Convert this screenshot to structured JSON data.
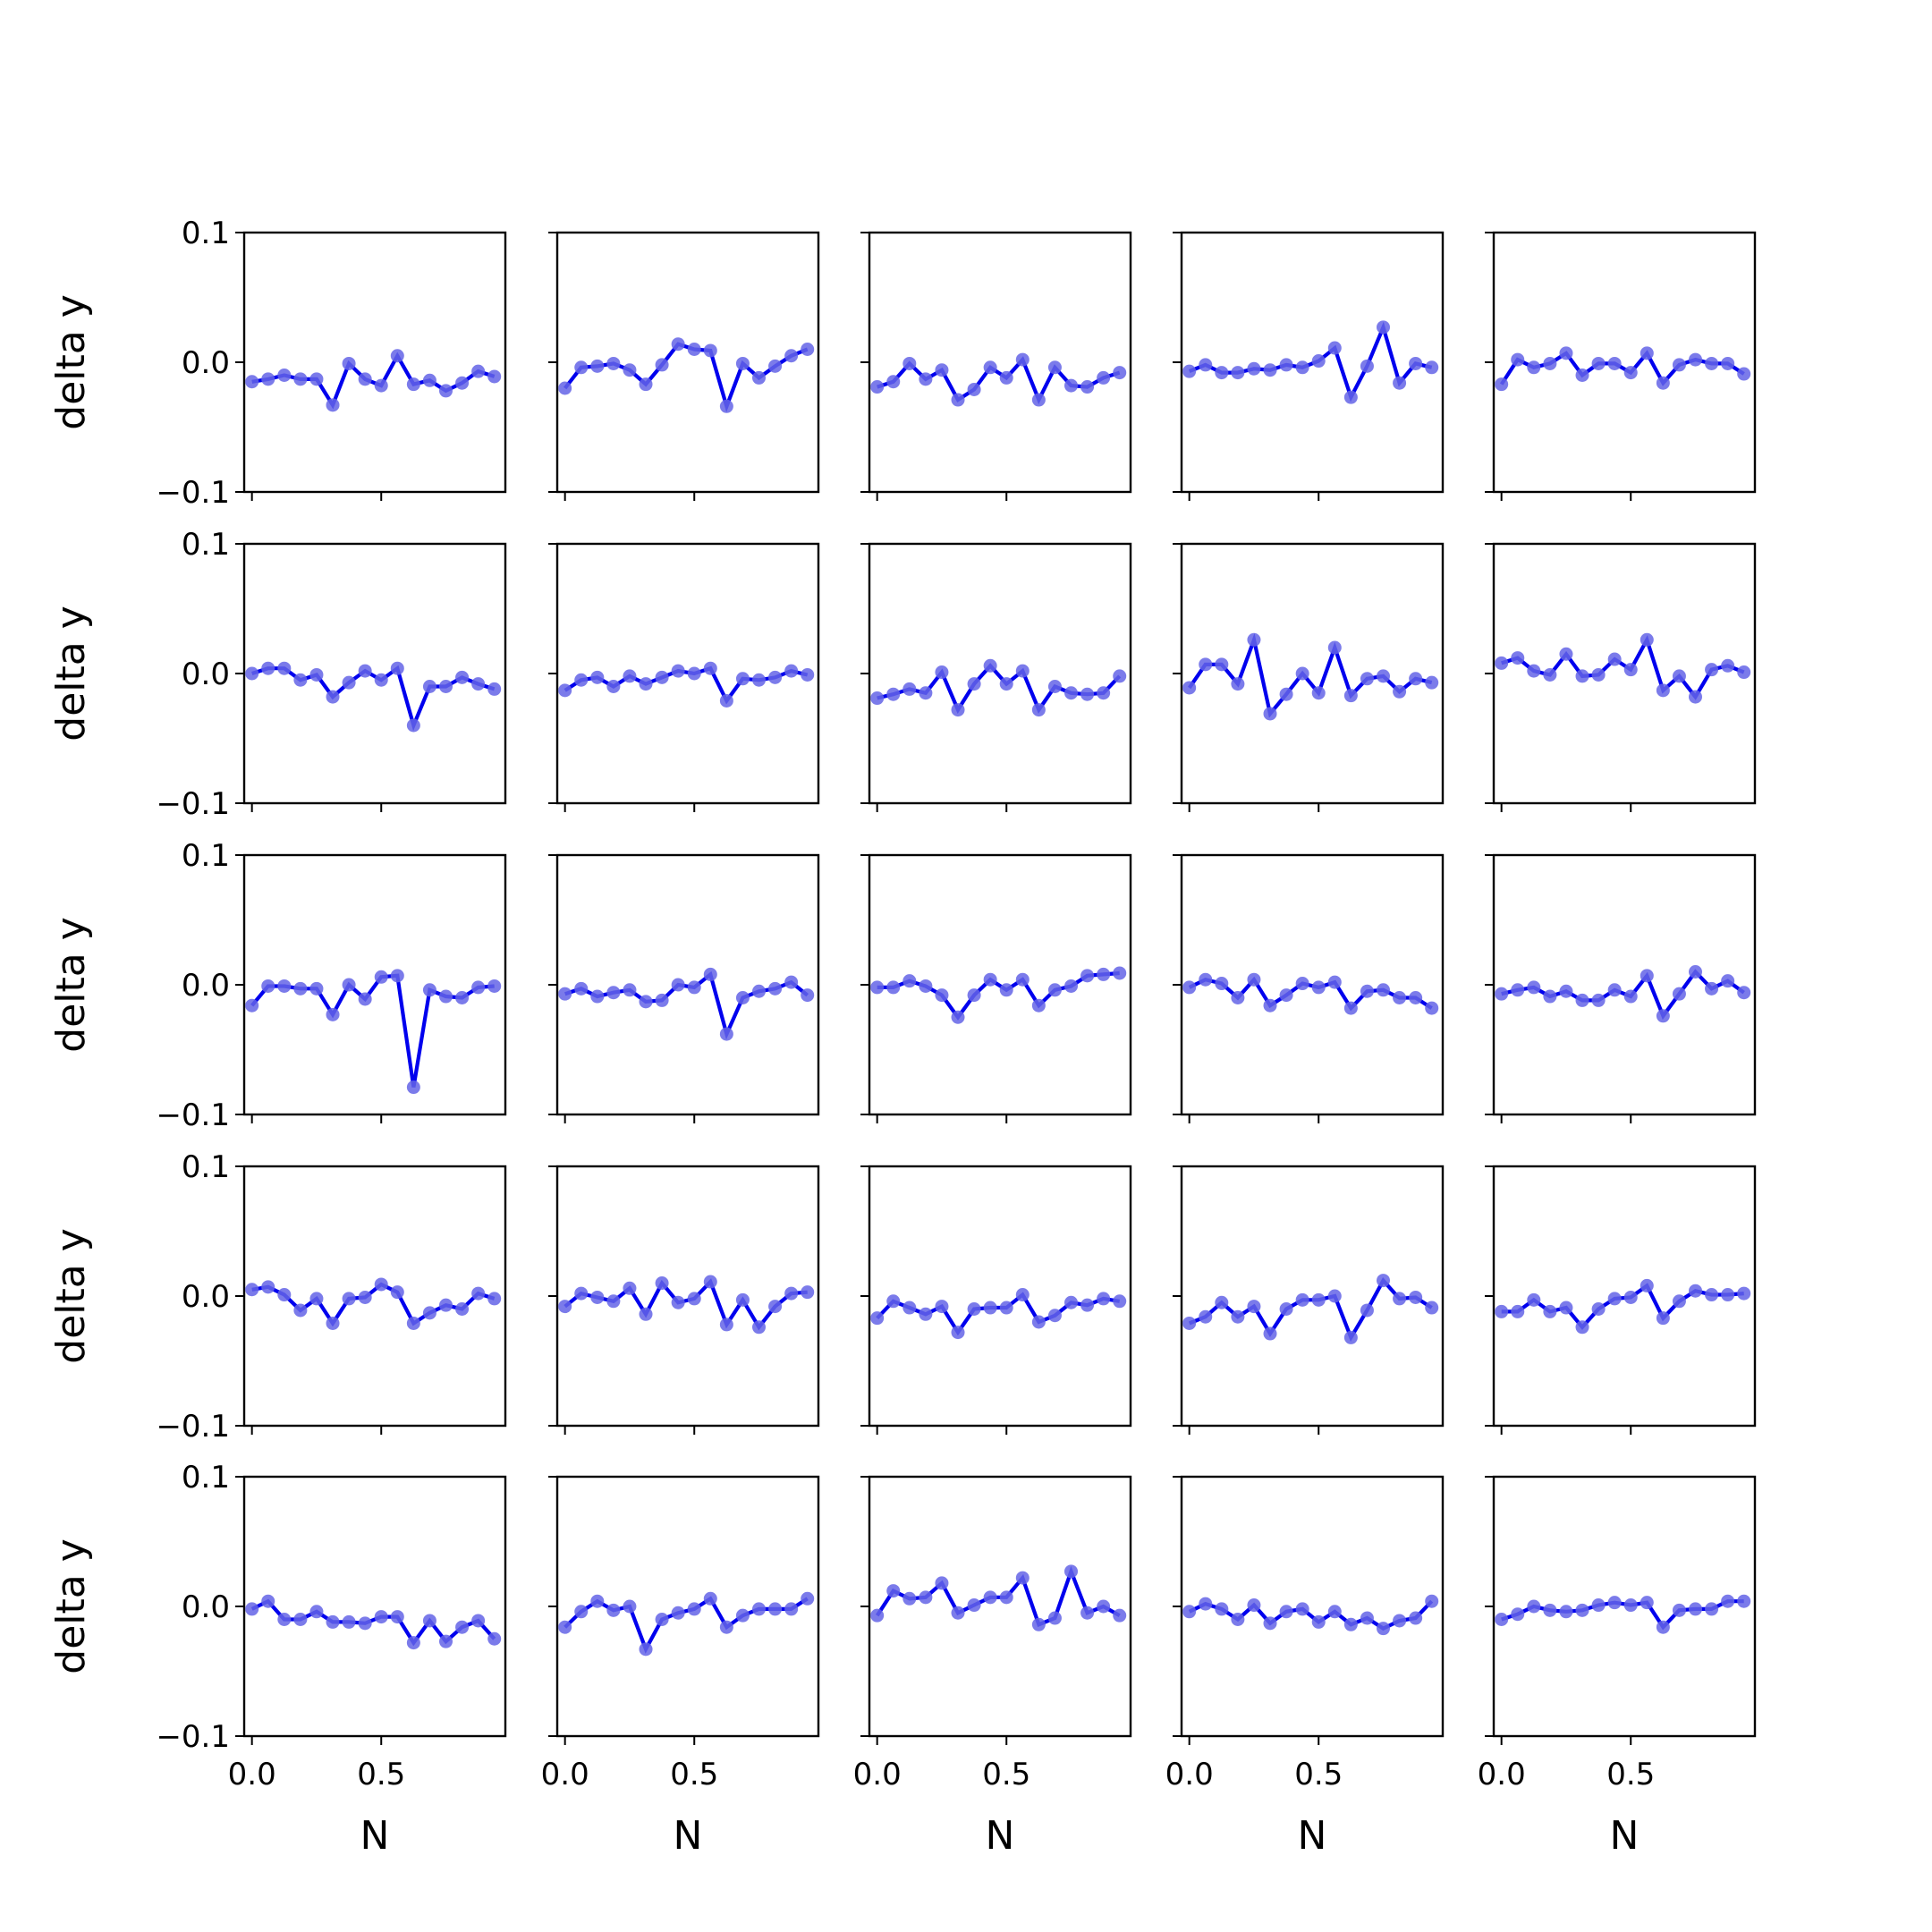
{
  "chart_data": {
    "type": "line",
    "layout": "5x5 grid of small multiples (shared x, shared y)",
    "xlabel": "N",
    "ylabel": "delta y",
    "xlim": [
      -0.03,
      0.98
    ],
    "ylim": [
      -0.1,
      0.1
    ],
    "x_ticks": [
      0.0,
      0.5
    ],
    "x_tick_labels": [
      "0.0",
      "0.5"
    ],
    "y_ticks": [
      0.1,
      0.0,
      -0.1
    ],
    "y_tick_labels": [
      "0.1",
      "0.0",
      "−0.1"
    ],
    "x": [
      0.0,
      0.0625,
      0.125,
      0.1875,
      0.25,
      0.3125,
      0.375,
      0.4375,
      0.5,
      0.5625,
      0.625,
      0.6875,
      0.75,
      0.8125,
      0.875,
      0.9375
    ],
    "series_color": "#0000ee",
    "marker_color": "#6464e6",
    "panels": [
      {
        "row": 1,
        "col": 1,
        "values": [
          -0.015,
          -0.013,
          -0.01,
          -0.013,
          -0.013,
          -0.033,
          -0.001,
          -0.013,
          -0.018,
          0.005,
          -0.017,
          -0.014,
          -0.022,
          -0.016,
          -0.007,
          -0.011
        ]
      },
      {
        "row": 1,
        "col": 2,
        "values": [
          -0.02,
          -0.004,
          -0.003,
          -0.001,
          -0.006,
          -0.017,
          -0.002,
          0.014,
          0.01,
          0.009,
          -0.034,
          -0.001,
          -0.012,
          -0.003,
          0.005,
          0.01
        ]
      },
      {
        "row": 1,
        "col": 3,
        "values": [
          -0.019,
          -0.015,
          -0.001,
          -0.013,
          -0.006,
          -0.029,
          -0.021,
          -0.004,
          -0.012,
          0.002,
          -0.029,
          -0.004,
          -0.018,
          -0.019,
          -0.012,
          -0.008
        ]
      },
      {
        "row": 1,
        "col": 4,
        "values": [
          -0.007,
          -0.002,
          -0.008,
          -0.008,
          -0.005,
          -0.006,
          -0.002,
          -0.004,
          0.001,
          0.011,
          -0.027,
          -0.003,
          0.027,
          -0.016,
          -0.001,
          -0.004
        ]
      },
      {
        "row": 1,
        "col": 5,
        "values": [
          -0.017,
          0.002,
          -0.004,
          -0.001,
          0.007,
          -0.01,
          -0.001,
          -0.001,
          -0.008,
          0.007,
          -0.016,
          -0.002,
          0.002,
          -0.001,
          -0.001,
          -0.009
        ]
      },
      {
        "row": 2,
        "col": 1,
        "values": [
          0.0,
          0.004,
          0.004,
          -0.005,
          -0.001,
          -0.018,
          -0.007,
          0.002,
          -0.005,
          0.004,
          -0.04,
          -0.01,
          -0.01,
          -0.003,
          -0.008,
          -0.012
        ]
      },
      {
        "row": 2,
        "col": 2,
        "values": [
          -0.013,
          -0.005,
          -0.003,
          -0.01,
          -0.002,
          -0.008,
          -0.003,
          0.002,
          0.0,
          0.004,
          -0.021,
          -0.004,
          -0.005,
          -0.003,
          0.002,
          -0.001
        ]
      },
      {
        "row": 2,
        "col": 3,
        "values": [
          -0.019,
          -0.016,
          -0.012,
          -0.015,
          0.001,
          -0.028,
          -0.008,
          0.006,
          -0.008,
          0.002,
          -0.028,
          -0.01,
          -0.015,
          -0.016,
          -0.015,
          -0.002
        ]
      },
      {
        "row": 2,
        "col": 4,
        "values": [
          -0.011,
          0.007,
          0.007,
          -0.008,
          0.026,
          -0.031,
          -0.016,
          0.0,
          -0.015,
          0.02,
          -0.017,
          -0.004,
          -0.002,
          -0.014,
          -0.004,
          -0.007
        ]
      },
      {
        "row": 2,
        "col": 5,
        "values": [
          0.008,
          0.012,
          0.002,
          -0.001,
          0.015,
          -0.002,
          -0.001,
          0.011,
          0.003,
          0.026,
          -0.013,
          -0.002,
          -0.018,
          0.003,
          0.006,
          0.001
        ]
      },
      {
        "row": 3,
        "col": 1,
        "values": [
          -0.016,
          -0.001,
          -0.001,
          -0.003,
          -0.003,
          -0.023,
          0.0,
          -0.011,
          0.006,
          0.007,
          -0.079,
          -0.004,
          -0.009,
          -0.01,
          -0.002,
          -0.001
        ]
      },
      {
        "row": 3,
        "col": 2,
        "values": [
          -0.007,
          -0.003,
          -0.009,
          -0.006,
          -0.004,
          -0.013,
          -0.012,
          0.0,
          -0.002,
          0.008,
          -0.038,
          -0.01,
          -0.005,
          -0.003,
          0.002,
          -0.008
        ]
      },
      {
        "row": 3,
        "col": 3,
        "values": [
          -0.002,
          -0.002,
          0.003,
          -0.001,
          -0.008,
          -0.025,
          -0.008,
          0.004,
          -0.004,
          0.004,
          -0.016,
          -0.004,
          -0.001,
          0.007,
          0.008,
          0.009
        ]
      },
      {
        "row": 3,
        "col": 4,
        "values": [
          -0.002,
          0.004,
          0.001,
          -0.01,
          0.004,
          -0.016,
          -0.008,
          0.001,
          -0.002,
          0.002,
          -0.018,
          -0.005,
          -0.004,
          -0.01,
          -0.01,
          -0.018
        ]
      },
      {
        "row": 3,
        "col": 5,
        "values": [
          -0.007,
          -0.004,
          -0.002,
          -0.009,
          -0.005,
          -0.012,
          -0.012,
          -0.004,
          -0.009,
          0.007,
          -0.024,
          -0.007,
          0.01,
          -0.003,
          0.003,
          -0.006
        ]
      },
      {
        "row": 4,
        "col": 1,
        "values": [
          0.005,
          0.007,
          0.001,
          -0.011,
          -0.002,
          -0.021,
          -0.002,
          -0.001,
          0.009,
          0.003,
          -0.021,
          -0.013,
          -0.007,
          -0.01,
          0.002,
          -0.002
        ]
      },
      {
        "row": 4,
        "col": 2,
        "values": [
          -0.008,
          0.002,
          -0.001,
          -0.004,
          0.006,
          -0.014,
          0.01,
          -0.005,
          -0.002,
          0.011,
          -0.022,
          -0.003,
          -0.024,
          -0.008,
          0.002,
          0.003
        ]
      },
      {
        "row": 4,
        "col": 3,
        "values": [
          -0.017,
          -0.004,
          -0.009,
          -0.014,
          -0.008,
          -0.028,
          -0.01,
          -0.009,
          -0.009,
          0.001,
          -0.02,
          -0.015,
          -0.005,
          -0.007,
          -0.002,
          -0.004
        ]
      },
      {
        "row": 4,
        "col": 4,
        "values": [
          -0.021,
          -0.016,
          -0.005,
          -0.016,
          -0.008,
          -0.029,
          -0.01,
          -0.003,
          -0.003,
          0.0,
          -0.032,
          -0.011,
          0.012,
          -0.002,
          -0.001,
          -0.009
        ]
      },
      {
        "row": 4,
        "col": 5,
        "values": [
          -0.012,
          -0.012,
          -0.003,
          -0.012,
          -0.009,
          -0.024,
          -0.01,
          -0.002,
          -0.001,
          0.008,
          -0.017,
          -0.004,
          0.004,
          0.001,
          0.001,
          0.002
        ]
      },
      {
        "row": 5,
        "col": 1,
        "values": [
          -0.002,
          0.004,
          -0.01,
          -0.01,
          -0.004,
          -0.012,
          -0.012,
          -0.013,
          -0.008,
          -0.008,
          -0.028,
          -0.011,
          -0.027,
          -0.016,
          -0.011,
          -0.025
        ]
      },
      {
        "row": 5,
        "col": 2,
        "values": [
          -0.016,
          -0.004,
          0.004,
          -0.003,
          0.0,
          -0.033,
          -0.01,
          -0.005,
          -0.002,
          0.006,
          -0.016,
          -0.007,
          -0.002,
          -0.002,
          -0.002,
          0.006
        ]
      },
      {
        "row": 5,
        "col": 3,
        "values": [
          -0.007,
          0.012,
          0.006,
          0.007,
          0.018,
          -0.005,
          0.001,
          0.007,
          0.007,
          0.022,
          -0.014,
          -0.009,
          0.027,
          -0.005,
          0.0,
          -0.007
        ]
      },
      {
        "row": 5,
        "col": 4,
        "values": [
          -0.004,
          0.002,
          -0.002,
          -0.01,
          0.001,
          -0.013,
          -0.004,
          -0.002,
          -0.012,
          -0.004,
          -0.014,
          -0.009,
          -0.017,
          -0.011,
          -0.009,
          0.004
        ]
      },
      {
        "row": 5,
        "col": 5,
        "values": [
          -0.01,
          -0.006,
          0.0,
          -0.003,
          -0.004,
          -0.003,
          0.001,
          0.003,
          0.001,
          0.003,
          -0.016,
          -0.003,
          -0.002,
          -0.002,
          0.004,
          0.004
        ]
      }
    ]
  }
}
